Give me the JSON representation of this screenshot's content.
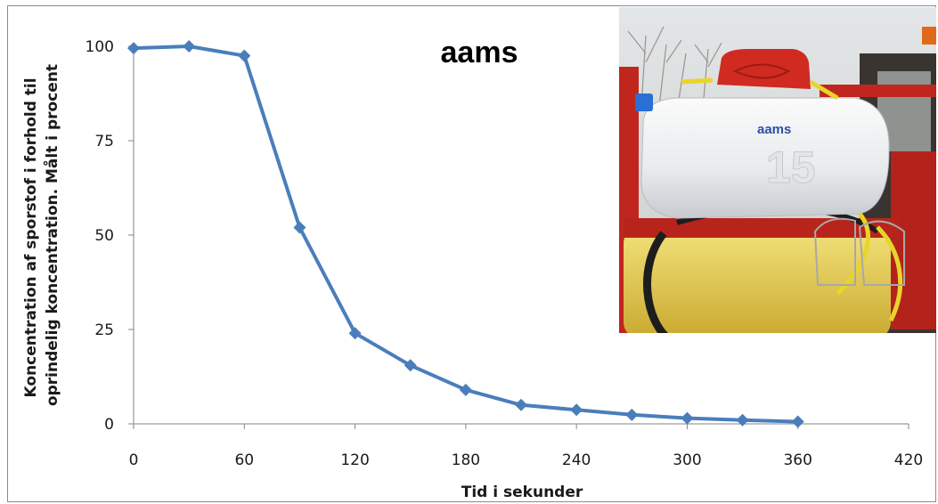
{
  "chart_data": {
    "type": "line",
    "title": "aams",
    "xlabel": "Tid i sekunder",
    "ylabel_lines": [
      "Koncentration af sporstof i forhold til",
      "oprindelig koncentration. Målt i procent"
    ],
    "xlim": [
      0,
      420
    ],
    "ylim": [
      0,
      100
    ],
    "xticks": [
      0,
      60,
      120,
      180,
      240,
      300,
      360,
      420
    ],
    "yticks": [
      0,
      25,
      50,
      75,
      100
    ],
    "grid": false,
    "legend": "none",
    "series": [
      {
        "color": "#4a7ebb",
        "marker": "diamond",
        "x": [
          0,
          30,
          60,
          90,
          120,
          150,
          180,
          210,
          240,
          270,
          300,
          330,
          360
        ],
        "y": [
          99.5,
          100,
          97.5,
          52,
          24,
          15.5,
          9,
          5,
          3.7,
          2.4,
          1.5,
          1,
          0.6
        ]
      }
    ]
  },
  "photo": {
    "tank_label": "aams",
    "tank_number": "15"
  }
}
